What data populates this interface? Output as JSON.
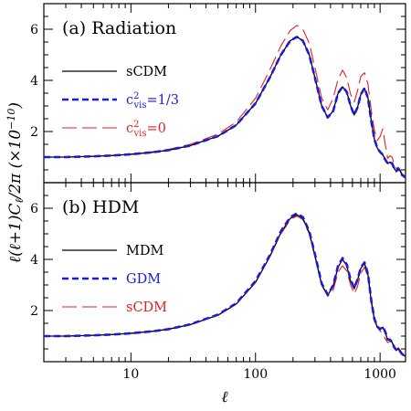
{
  "chart_data": [
    {
      "type": "line",
      "title": "(a) Radiation",
      "xscale": "log",
      "xlim": [
        2,
        1600
      ],
      "ylim": [
        0,
        7
      ],
      "ylabel": "ℓ(ℓ+1)Cℓ/2π (×10⁻¹⁰)",
      "yticks": [
        "2",
        "4",
        "6"
      ],
      "legend_position": "middle-left",
      "series": [
        {
          "name": "sCDM",
          "color": "#000000",
          "dash": "solid",
          "x": [
            2,
            3,
            5,
            7,
            10,
            15,
            20,
            30,
            50,
            70,
            100,
            130,
            160,
            190,
            215,
            240,
            270,
            300,
            340,
            380,
            420,
            460,
            500,
            540,
            580,
            620,
            660,
            700,
            750,
            800,
            850,
            900,
            950,
            1000,
            1050,
            1100,
            1150,
            1200,
            1250,
            1300,
            1350,
            1400,
            1450,
            1500,
            1550,
            1600
          ],
          "y": [
            1.0,
            1.0,
            1.03,
            1.06,
            1.11,
            1.19,
            1.27,
            1.45,
            1.82,
            2.25,
            3.1,
            4.1,
            5.0,
            5.55,
            5.7,
            5.55,
            5.0,
            4.1,
            3.0,
            2.55,
            2.8,
            3.5,
            3.75,
            3.55,
            3.0,
            2.65,
            2.95,
            3.45,
            3.7,
            3.3,
            2.4,
            1.7,
            1.35,
            1.2,
            1.1,
            0.9,
            0.75,
            0.8,
            0.75,
            0.55,
            0.45,
            0.55,
            0.45,
            0.3,
            0.25,
            0.2
          ]
        },
        {
          "name": "c²vis=1/3",
          "color": "#1a1ad8",
          "dash": "short",
          "x": [
            2,
            3,
            5,
            7,
            10,
            15,
            20,
            30,
            50,
            70,
            100,
            130,
            160,
            190,
            215,
            240,
            270,
            300,
            340,
            380,
            420,
            460,
            500,
            540,
            580,
            620,
            660,
            700,
            750,
            800,
            850,
            900,
            950,
            1000,
            1050,
            1100,
            1150,
            1200,
            1250,
            1300,
            1350,
            1400,
            1450,
            1500,
            1550,
            1600
          ],
          "y": [
            1.0,
            1.0,
            1.03,
            1.06,
            1.11,
            1.19,
            1.27,
            1.45,
            1.82,
            2.25,
            3.1,
            4.1,
            5.0,
            5.55,
            5.7,
            5.55,
            5.0,
            4.1,
            3.0,
            2.55,
            2.8,
            3.5,
            3.75,
            3.55,
            3.0,
            2.65,
            2.95,
            3.45,
            3.7,
            3.3,
            2.4,
            1.7,
            1.35,
            1.2,
            1.1,
            0.9,
            0.75,
            0.8,
            0.75,
            0.55,
            0.45,
            0.55,
            0.45,
            0.3,
            0.25,
            0.2
          ]
        },
        {
          "name": "c²vis=0",
          "color": "#e02020",
          "dash": "long",
          "x": [
            2,
            3,
            5,
            7,
            10,
            15,
            20,
            30,
            50,
            70,
            100,
            130,
            160,
            190,
            215,
            240,
            270,
            300,
            340,
            380,
            420,
            460,
            500,
            540,
            580,
            620,
            660,
            700,
            750,
            800,
            850,
            900,
            950,
            1000,
            1050,
            1100,
            1150,
            1200,
            1250,
            1300,
            1350,
            1400,
            1450,
            1500,
            1550,
            1600
          ],
          "y": [
            1.0,
            1.0,
            1.03,
            1.06,
            1.12,
            1.21,
            1.3,
            1.5,
            1.9,
            2.37,
            3.3,
            4.4,
            5.35,
            5.95,
            6.15,
            6.0,
            5.45,
            4.5,
            3.3,
            2.85,
            3.3,
            4.05,
            4.4,
            4.1,
            3.45,
            3.15,
            3.6,
            4.15,
            4.3,
            3.85,
            2.8,
            2.05,
            1.65,
            1.8,
            2.1,
            1.5,
            0.95,
            1.05,
            1.0,
            0.7,
            0.55,
            0.6,
            0.5,
            0.35,
            0.3,
            0.25
          ]
        }
      ]
    },
    {
      "type": "line",
      "title": "(b) HDM",
      "xscale": "log",
      "xlim": [
        2,
        1600
      ],
      "ylim": [
        0,
        7
      ],
      "xlabel": "ℓ",
      "xticks": [
        "10",
        "100",
        "1000"
      ],
      "yticks": [
        "2",
        "4",
        "6"
      ],
      "legend_position": "middle-left",
      "series": [
        {
          "name": "MDM",
          "color": "#000000",
          "dash": "solid",
          "x": [
            2,
            3,
            5,
            7,
            10,
            15,
            20,
            30,
            50,
            70,
            100,
            130,
            160,
            190,
            215,
            240,
            270,
            300,
            340,
            380,
            420,
            460,
            500,
            540,
            580,
            620,
            660,
            700,
            750,
            800,
            850,
            900,
            950,
            1000,
            1050,
            1100,
            1150,
            1200,
            1250,
            1300,
            1350,
            1400,
            1450,
            1500,
            1550,
            1600
          ],
          "y": [
            1.0,
            1.0,
            1.03,
            1.06,
            1.11,
            1.19,
            1.27,
            1.45,
            1.82,
            2.25,
            3.1,
            4.1,
            5.05,
            5.6,
            5.75,
            5.6,
            5.05,
            4.15,
            3.0,
            2.6,
            2.95,
            3.7,
            4.0,
            3.75,
            3.15,
            2.85,
            3.2,
            3.65,
            3.85,
            3.4,
            2.35,
            1.65,
            1.35,
            1.25,
            1.35,
            1.15,
            0.85,
            0.85,
            0.75,
            0.55,
            0.45,
            0.5,
            0.4,
            0.3,
            0.25,
            0.2
          ]
        },
        {
          "name": "GDM",
          "color": "#1a1ad8",
          "dash": "short",
          "x": [
            2,
            3,
            5,
            7,
            10,
            15,
            20,
            30,
            50,
            70,
            100,
            130,
            160,
            190,
            215,
            240,
            270,
            300,
            340,
            380,
            420,
            460,
            500,
            540,
            580,
            620,
            660,
            700,
            750,
            800,
            850,
            900,
            950,
            1000,
            1050,
            1100,
            1150,
            1200,
            1250,
            1300,
            1350,
            1400,
            1450,
            1500,
            1550,
            1600
          ],
          "y": [
            1.0,
            1.0,
            1.03,
            1.06,
            1.11,
            1.19,
            1.27,
            1.46,
            1.84,
            2.28,
            3.15,
            4.15,
            5.1,
            5.65,
            5.8,
            5.65,
            5.1,
            4.2,
            3.05,
            2.62,
            2.98,
            3.75,
            4.05,
            3.8,
            3.2,
            2.88,
            3.22,
            3.68,
            3.88,
            3.42,
            2.38,
            1.67,
            1.37,
            1.27,
            1.37,
            1.17,
            0.87,
            0.86,
            0.76,
            0.56,
            0.46,
            0.5,
            0.4,
            0.3,
            0.25,
            0.2
          ]
        },
        {
          "name": "sCDM",
          "color": "#e02020",
          "dash": "long",
          "x": [
            2,
            3,
            5,
            7,
            10,
            15,
            20,
            30,
            50,
            70,
            100,
            130,
            160,
            190,
            215,
            240,
            270,
            300,
            340,
            380,
            420,
            460,
            500,
            540,
            580,
            620,
            660,
            700,
            750,
            800,
            850,
            900,
            950,
            1000,
            1050,
            1100,
            1150,
            1200,
            1250,
            1300,
            1350,
            1400,
            1450,
            1500,
            1550,
            1600
          ],
          "y": [
            1.0,
            1.0,
            1.03,
            1.06,
            1.11,
            1.19,
            1.27,
            1.45,
            1.82,
            2.25,
            3.1,
            4.1,
            5.0,
            5.55,
            5.7,
            5.55,
            5.0,
            4.1,
            3.0,
            2.55,
            2.8,
            3.5,
            3.75,
            3.55,
            3.0,
            2.65,
            2.95,
            3.45,
            3.7,
            3.3,
            2.4,
            1.7,
            1.35,
            1.2,
            1.1,
            0.9,
            0.75,
            0.8,
            0.75,
            0.55,
            0.45,
            0.55,
            0.45,
            0.3,
            0.25,
            0.2
          ]
        }
      ]
    }
  ]
}
